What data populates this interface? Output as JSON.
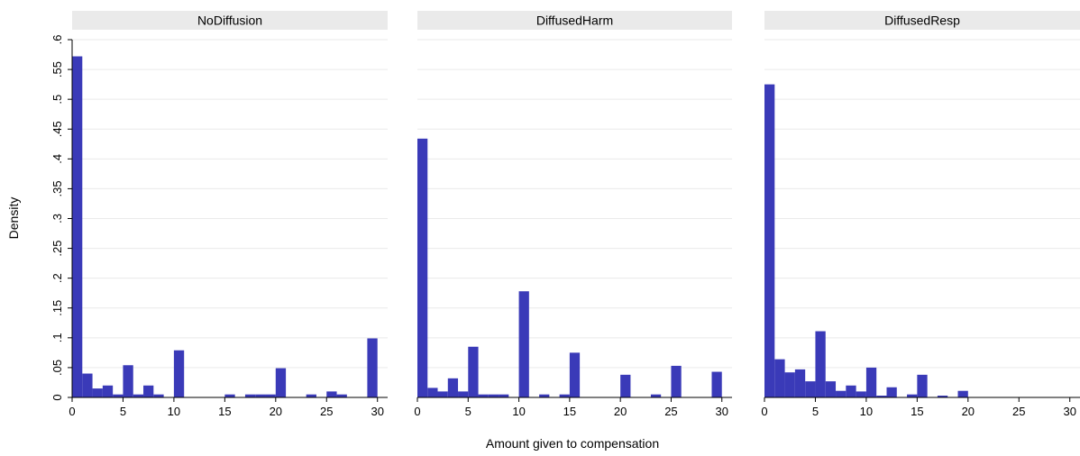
{
  "chart_data": {
    "type": "bar",
    "ylabel": "Density",
    "xlabel": "Amount given to compensation",
    "ylim": [
      0,
      0.6
    ],
    "yticks": [
      0,
      0.05,
      0.1,
      0.15,
      0.2,
      0.25,
      0.3,
      0.35,
      0.4,
      0.45,
      0.5,
      0.55,
      0.6
    ],
    "ytick_labels": [
      "0",
      ".05",
      ".1",
      ".15",
      ".2",
      ".25",
      ".3",
      ".35",
      ".4",
      ".45",
      ".5",
      ".55",
      ".6"
    ],
    "xlim": [
      0,
      31
    ],
    "xticks": [
      0,
      5,
      10,
      15,
      20,
      25,
      30
    ],
    "xtick_labels": [
      "0",
      "5",
      "10",
      "15",
      "20",
      "25",
      "30"
    ],
    "bin_width": 1,
    "bar_color": "#3a3ab8",
    "grid": true,
    "panels": [
      {
        "title": "NoDiffusion",
        "bins": [
          0,
          1,
          2,
          3,
          4,
          5,
          6,
          7,
          8,
          10,
          15,
          17,
          18,
          19,
          20,
          23,
          25,
          26,
          29
        ],
        "values": [
          0.572,
          0.04,
          0.015,
          0.02,
          0.005,
          0.054,
          0.005,
          0.02,
          0.005,
          0.079,
          0.005,
          0.005,
          0.005,
          0.005,
          0.049,
          0.005,
          0.01,
          0.005,
          0.099
        ]
      },
      {
        "title": "DiffusedHarm",
        "bins": [
          0,
          1,
          2,
          3,
          4,
          5,
          6,
          7,
          8,
          10,
          12,
          14,
          15,
          20,
          23,
          25,
          29
        ],
        "values": [
          0.434,
          0.016,
          0.01,
          0.032,
          0.01,
          0.085,
          0.005,
          0.005,
          0.005,
          0.178,
          0.005,
          0.005,
          0.075,
          0.038,
          0.005,
          0.053,
          0.043
        ]
      },
      {
        "title": "DiffusedResp",
        "bins": [
          0,
          1,
          2,
          3,
          4,
          5,
          6,
          7,
          8,
          9,
          10,
          11,
          12,
          14,
          15,
          17,
          19
        ],
        "values": [
          0.525,
          0.064,
          0.042,
          0.047,
          0.027,
          0.111,
          0.027,
          0.011,
          0.02,
          0.01,
          0.05,
          0.003,
          0.017,
          0.005,
          0.038,
          0.003,
          0.011
        ]
      }
    ]
  }
}
